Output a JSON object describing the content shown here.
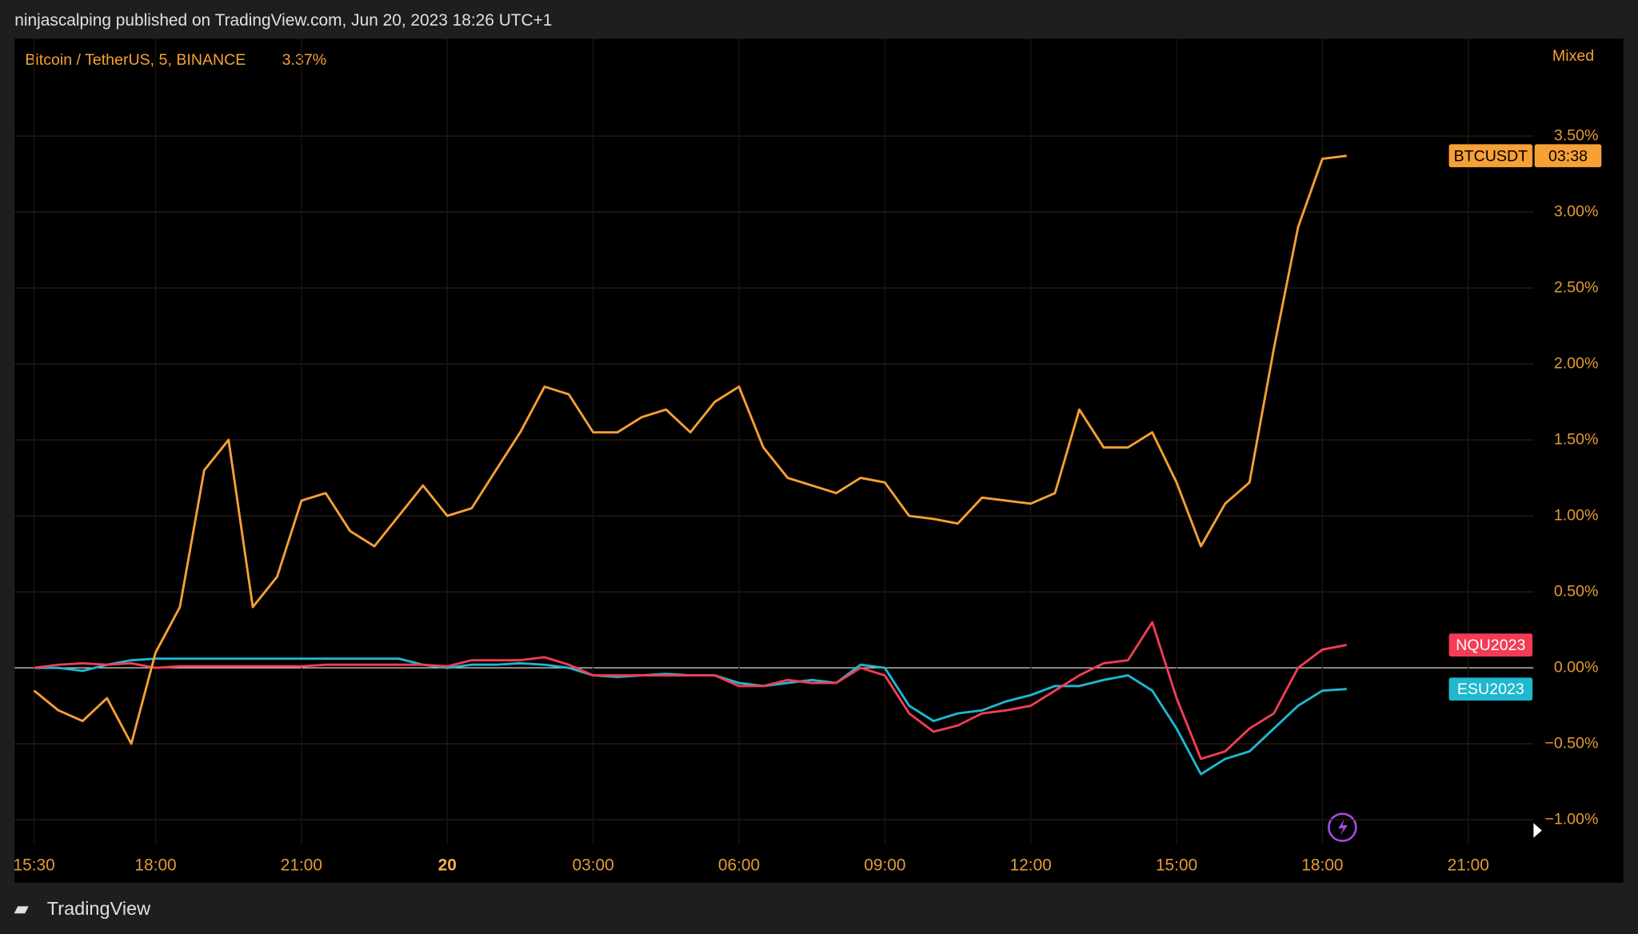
{
  "header": {
    "text": "ninjascalping published on TradingView.com, Jun 20, 2023 18:26 UTC+1"
  },
  "footer": {
    "brand": "TradingView"
  },
  "chart_data": {
    "type": "line",
    "legend_title": "Bitcoin / TetherUS, 5, BINANCE",
    "scale_mode": "Mixed",
    "countdown": "03:38",
    "categories": [
      "15:30",
      null,
      null,
      null,
      null,
      "18:00",
      null,
      null,
      null,
      null,
      null,
      "21:00",
      null,
      null,
      null,
      null,
      null,
      "20",
      null,
      null,
      null,
      null,
      null,
      "03:00",
      null,
      null,
      null,
      null,
      null,
      "06:00",
      null,
      null,
      null,
      null,
      null,
      "09:00",
      null,
      null,
      null,
      null,
      null,
      "12:00",
      null,
      null,
      null,
      null,
      null,
      "15:00",
      null,
      null,
      null,
      null,
      null,
      "18:00",
      null,
      null,
      null,
      null,
      null,
      "21:00",
      null,
      null
    ],
    "ylim": [
      -1.16,
      4.14
    ],
    "yticks": [
      {
        "value": -1,
        "label": "−1.00%"
      },
      {
        "value": -0.5,
        "label": "−0.50%"
      },
      {
        "value": 0,
        "label": "0.00%"
      },
      {
        "value": 0.5,
        "label": "0.50%"
      },
      {
        "value": 1,
        "label": "1.00%"
      },
      {
        "value": 1.5,
        "label": "1.50%"
      },
      {
        "value": 2,
        "label": "2.00%"
      },
      {
        "value": 2.5,
        "label": "2.50%"
      },
      {
        "value": 3,
        "label": "3.00%"
      },
      {
        "value": 3.5,
        "label": "3.50%"
      }
    ],
    "grid": true,
    "series": [
      {
        "name": "BTCUSDT",
        "color": "#f7a035",
        "last_label": "3.37%",
        "values": [
          -0.15,
          -0.28,
          -0.35,
          -0.2,
          -0.5,
          0.1,
          0.4,
          1.3,
          1.5,
          0.4,
          0.6,
          1.1,
          1.15,
          0.9,
          0.8,
          1.0,
          1.2,
          1.0,
          1.05,
          1.3,
          1.55,
          1.85,
          1.8,
          1.55,
          1.55,
          1.65,
          1.7,
          1.55,
          1.75,
          1.85,
          1.45,
          1.25,
          1.2,
          1.15,
          1.25,
          1.22,
          1.0,
          0.98,
          0.95,
          1.12,
          1.1,
          1.08,
          1.15,
          1.7,
          1.45,
          1.45,
          1.55,
          1.22,
          0.8,
          1.08,
          1.22,
          2.1,
          2.9,
          3.35,
          3.37,
          null,
          null,
          null,
          null,
          null,
          null,
          null
        ]
      },
      {
        "name": "NQU2023",
        "color": "#f23d55",
        "values": [
          0,
          0.02,
          0.03,
          0.02,
          0.03,
          0,
          0.01,
          0.01,
          0.01,
          0.01,
          0.01,
          0.01,
          0.02,
          0.02,
          0.02,
          0.02,
          0.02,
          0.01,
          0.05,
          0.05,
          0.05,
          0.07,
          0.02,
          -0.05,
          -0.05,
          -0.05,
          -0.05,
          -0.05,
          -0.05,
          -0.12,
          -0.12,
          -0.08,
          -0.1,
          -0.1,
          0,
          -0.05,
          -0.3,
          -0.42,
          -0.38,
          -0.3,
          -0.28,
          -0.25,
          -0.15,
          -0.05,
          0.03,
          0.05,
          0.3,
          -0.2,
          -0.6,
          -0.55,
          -0.4,
          -0.3,
          0,
          0.12,
          0.15,
          null,
          null,
          null,
          null,
          null,
          null,
          null
        ]
      },
      {
        "name": "ESU2023",
        "color": "#1fb8cf",
        "values": [
          0,
          0,
          -0.02,
          0.02,
          0.05,
          0.06,
          0.06,
          0.06,
          0.06,
          0.06,
          0.06,
          0.06,
          0.06,
          0.06,
          0.06,
          0.06,
          0.02,
          0,
          0.02,
          0.02,
          0.03,
          0.02,
          0,
          -0.05,
          -0.06,
          -0.05,
          -0.04,
          -0.05,
          -0.05,
          -0.1,
          -0.12,
          -0.1,
          -0.08,
          -0.1,
          0.02,
          0,
          -0.25,
          -0.35,
          -0.3,
          -0.28,
          -0.22,
          -0.18,
          -0.12,
          -0.12,
          -0.08,
          -0.05,
          -0.15,
          -0.4,
          -0.7,
          -0.6,
          -0.55,
          -0.4,
          -0.25,
          -0.15,
          -0.14,
          null,
          null,
          null,
          null,
          null,
          null,
          null
        ]
      }
    ]
  }
}
